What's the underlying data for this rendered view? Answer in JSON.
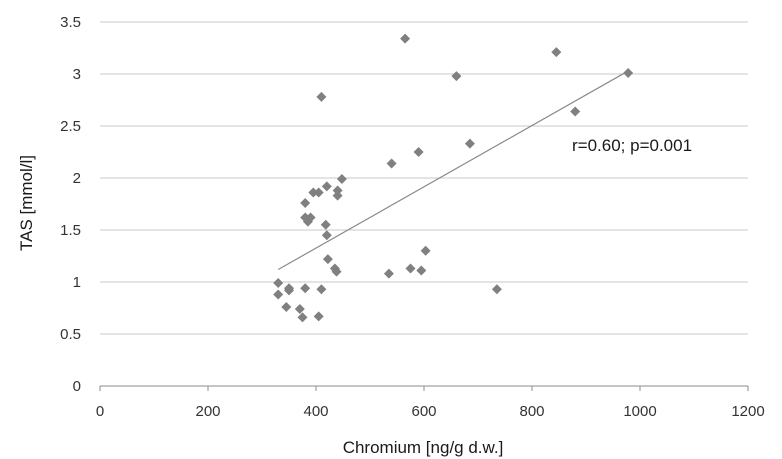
{
  "chart_data": {
    "type": "scatter",
    "xlabel": "Chromium [ng/g d.w.]",
    "ylabel": "TAS [mmol/l]",
    "xlim": [
      0,
      1200
    ],
    "ylim": [
      0,
      3.5
    ],
    "x_ticks": [
      0,
      200,
      400,
      600,
      800,
      1000,
      1200
    ],
    "y_ticks": [
      0,
      0.5,
      1,
      1.5,
      2,
      2.5,
      3,
      3.5
    ],
    "x_tick_labels": [
      "0",
      "200",
      "400",
      "600",
      "800",
      "1000",
      "1200"
    ],
    "y_tick_labels": [
      "0",
      "0.5",
      "1",
      "1.5",
      "2",
      "2.5",
      "3",
      "3.5"
    ],
    "grid": "horizontal",
    "annotation": "r=0.60; p=0.001",
    "trendline": {
      "x": [
        330,
        975
      ],
      "y": [
        1.12,
        3.02
      ]
    },
    "series": [
      {
        "marker": "diamond",
        "x": [
          330,
          330,
          345,
          350,
          350,
          370,
          375,
          380,
          385,
          390,
          410,
          405,
          405,
          380,
          380,
          385,
          395,
          420,
          418,
          420,
          422,
          435,
          438,
          440,
          440,
          448,
          410,
          535,
          540,
          565,
          590,
          575,
          595,
          603,
          660,
          685,
          735,
          845,
          880,
          978
        ],
        "y": [
          0.99,
          0.88,
          0.76,
          0.94,
          0.92,
          0.74,
          0.66,
          0.94,
          1.58,
          1.62,
          0.93,
          0.67,
          1.86,
          1.62,
          1.76,
          1.6,
          1.86,
          1.92,
          1.55,
          1.45,
          1.22,
          1.13,
          1.1,
          1.88,
          1.83,
          1.99,
          2.78,
          1.08,
          2.14,
          3.34,
          2.25,
          1.13,
          1.11,
          1.3,
          2.98,
          2.33,
          0.93,
          3.21,
          2.64,
          3.01
        ],
        "color": "#808080"
      }
    ]
  }
}
